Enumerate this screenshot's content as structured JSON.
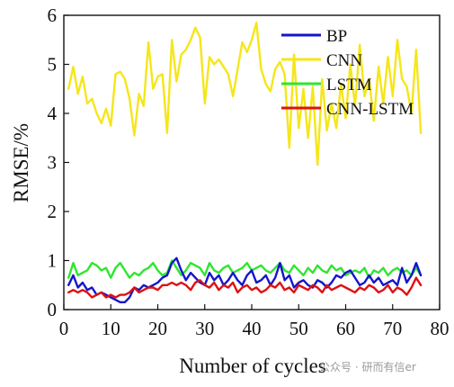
{
  "chart_data": {
    "type": "line",
    "xlabel": "Number of cycles",
    "ylabel": "RMSE/%",
    "xlim": [
      0,
      80
    ],
    "ylim": [
      0,
      6
    ],
    "xticks": [
      0,
      10,
      20,
      30,
      40,
      50,
      60,
      70,
      80
    ],
    "yticks": [
      0,
      1,
      2,
      3,
      4,
      5,
      6
    ],
    "grid": false,
    "legend_position": "top-right",
    "x": [
      1,
      2,
      3,
      4,
      5,
      6,
      7,
      8,
      9,
      10,
      11,
      12,
      13,
      14,
      15,
      16,
      17,
      18,
      19,
      20,
      21,
      22,
      23,
      24,
      25,
      26,
      27,
      28,
      29,
      30,
      31,
      32,
      33,
      34,
      35,
      36,
      37,
      38,
      39,
      40,
      41,
      42,
      43,
      44,
      45,
      46,
      47,
      48,
      49,
      50,
      51,
      52,
      53,
      54,
      55,
      56,
      57,
      58,
      59,
      60,
      61,
      62,
      63,
      64,
      65,
      66,
      67,
      68,
      69,
      70,
      71,
      72,
      73,
      74,
      75,
      76
    ],
    "series": [
      {
        "name": "BP",
        "color": "#1515cc",
        "values": [
          0.5,
          0.7,
          0.45,
          0.55,
          0.4,
          0.45,
          0.3,
          0.35,
          0.3,
          0.25,
          0.2,
          0.15,
          0.15,
          0.25,
          0.45,
          0.4,
          0.5,
          0.45,
          0.5,
          0.55,
          0.65,
          0.7,
          0.95,
          1.05,
          0.8,
          0.6,
          0.75,
          0.65,
          0.55,
          0.5,
          0.75,
          0.6,
          0.7,
          0.5,
          0.6,
          0.75,
          0.6,
          0.5,
          0.7,
          0.8,
          0.55,
          0.6,
          0.7,
          0.5,
          0.65,
          0.95,
          0.6,
          0.7,
          0.45,
          0.55,
          0.6,
          0.5,
          0.45,
          0.6,
          0.55,
          0.45,
          0.55,
          0.7,
          0.65,
          0.75,
          0.8,
          0.65,
          0.5,
          0.55,
          0.7,
          0.55,
          0.65,
          0.5,
          0.55,
          0.6,
          0.5,
          0.85,
          0.55,
          0.7,
          0.95,
          0.7
        ]
      },
      {
        "name": "CNN",
        "color": "#f5e61a",
        "values": [
          4.5,
          4.95,
          4.4,
          4.75,
          4.2,
          4.3,
          4.0,
          3.8,
          4.1,
          3.75,
          4.8,
          4.85,
          4.7,
          4.3,
          3.55,
          4.4,
          4.15,
          5.45,
          4.5,
          4.75,
          4.8,
          3.6,
          5.5,
          4.65,
          5.2,
          5.3,
          5.5,
          5.75,
          5.55,
          4.2,
          5.15,
          5.0,
          5.1,
          4.95,
          4.8,
          4.35,
          4.9,
          5.45,
          5.25,
          5.5,
          5.85,
          4.9,
          4.6,
          4.45,
          4.9,
          5.05,
          4.8,
          3.3,
          5.2,
          3.7,
          4.5,
          3.5,
          4.55,
          2.95,
          4.7,
          3.65,
          4.2,
          3.7,
          4.6,
          3.9,
          5.0,
          4.15,
          5.4,
          4.35,
          4.7,
          3.85,
          4.95,
          4.2,
          5.15,
          4.35,
          5.5,
          4.7,
          4.55,
          4.0,
          5.3,
          3.6
        ]
      },
      {
        "name": "LSTM",
        "color": "#2ee62e",
        "values": [
          0.65,
          0.95,
          0.7,
          0.75,
          0.8,
          0.95,
          0.9,
          0.8,
          0.85,
          0.65,
          0.85,
          0.95,
          0.8,
          0.65,
          0.75,
          0.7,
          0.8,
          0.85,
          0.95,
          0.8,
          0.7,
          0.75,
          1.0,
          0.85,
          0.7,
          0.8,
          0.95,
          0.9,
          0.85,
          0.7,
          0.95,
          0.8,
          0.75,
          0.85,
          0.9,
          0.75,
          0.8,
          0.85,
          0.95,
          0.8,
          0.85,
          0.9,
          0.8,
          0.75,
          0.85,
          0.95,
          0.8,
          0.75,
          0.9,
          0.8,
          0.7,
          0.85,
          0.75,
          0.9,
          0.8,
          0.75,
          0.9,
          0.8,
          0.85,
          0.7,
          0.75,
          0.8,
          0.75,
          0.85,
          0.65,
          0.8,
          0.75,
          0.85,
          0.7,
          0.8,
          0.85,
          0.75,
          0.8,
          0.7,
          0.85,
          0.7
        ]
      },
      {
        "name": "CNN-LSTM",
        "color": "#dd1111",
        "values": [
          0.35,
          0.4,
          0.35,
          0.4,
          0.35,
          0.25,
          0.3,
          0.35,
          0.25,
          0.3,
          0.25,
          0.3,
          0.3,
          0.35,
          0.45,
          0.35,
          0.4,
          0.45,
          0.45,
          0.4,
          0.5,
          0.5,
          0.55,
          0.5,
          0.55,
          0.5,
          0.4,
          0.55,
          0.6,
          0.5,
          0.45,
          0.55,
          0.4,
          0.5,
          0.45,
          0.55,
          0.35,
          0.45,
          0.5,
          0.4,
          0.45,
          0.35,
          0.4,
          0.5,
          0.45,
          0.55,
          0.4,
          0.45,
          0.35,
          0.5,
          0.45,
          0.4,
          0.5,
          0.45,
          0.35,
          0.5,
          0.4,
          0.45,
          0.5,
          0.45,
          0.4,
          0.35,
          0.45,
          0.4,
          0.5,
          0.45,
          0.35,
          0.4,
          0.5,
          0.35,
          0.45,
          0.4,
          0.3,
          0.45,
          0.65,
          0.5
        ]
      }
    ]
  },
  "watermark": "公众号 · 研而有信er"
}
